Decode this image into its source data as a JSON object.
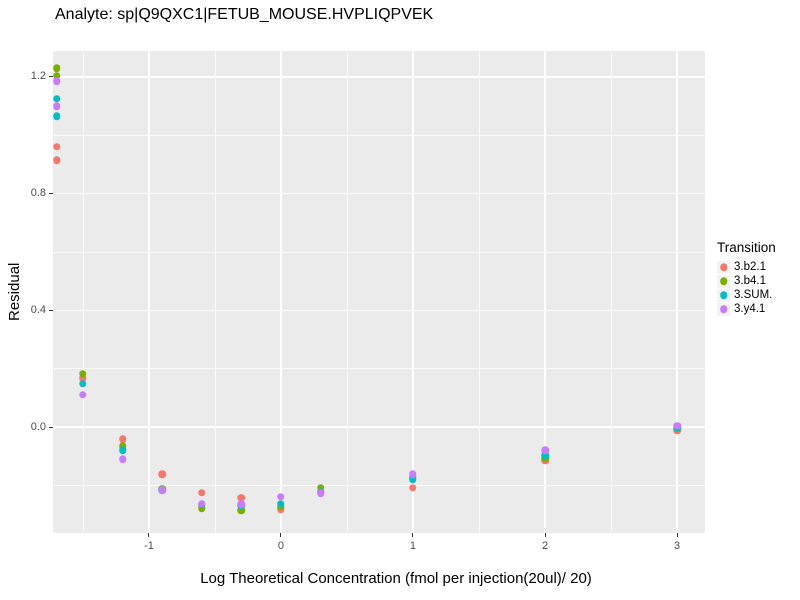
{
  "title": "Analyte: sp|Q9QXC1|FETUB_MOUSE.HVPLIQPVEK",
  "colors": {
    "panel_background": "#EBEBEB",
    "gridline": "#FFFFFF",
    "tick_label": "#4D4D4D",
    "legend_key_background": "#F3F3F3"
  },
  "chart_data": {
    "type": "scatter",
    "title": "Analyte: sp|Q9QXC1|FETUB_MOUSE.HVPLIQPVEK",
    "xlabel": "Log Theoretical Concentration (fmol per injection(20ul)/ 20)",
    "ylabel": "Residual",
    "xlim": [
      -1.727,
      3.212
    ],
    "ylim": [
      -0.363,
      1.289
    ],
    "grid": true,
    "legend_position": "right",
    "legend_title": "Transition",
    "x_ticks": [
      {
        "value": -1,
        "label": "-1"
      },
      {
        "value": 0,
        "label": "0"
      },
      {
        "value": 1,
        "label": "1"
      },
      {
        "value": 2,
        "label": "2"
      },
      {
        "value": 3,
        "label": "3"
      }
    ],
    "y_ticks": [
      {
        "value": 0.0,
        "label": "0.0"
      },
      {
        "value": 0.4,
        "label": "0.4"
      },
      {
        "value": 0.8,
        "label": "0.8"
      },
      {
        "value": 1.2,
        "label": "1.2"
      }
    ],
    "x_minor_ticks": [
      -1.5,
      -0.5,
      0.5,
      1.5,
      2.5
    ],
    "y_minor_ticks": [
      -0.2,
      0.2,
      0.6,
      1.0
    ],
    "series": [
      {
        "name": "3.b2.1",
        "color": "#F8766D",
        "points": [
          [
            -1.7,
            0.96
          ],
          [
            -1.7,
            0.915
          ],
          [
            -1.5,
            0.168
          ],
          [
            -1.2,
            -0.041
          ],
          [
            -0.9,
            -0.161
          ],
          [
            -0.6,
            -0.225
          ],
          [
            -0.3,
            -0.242
          ],
          [
            0.0,
            -0.282
          ],
          [
            0.3,
            -0.222
          ],
          [
            1.0,
            -0.208
          ],
          [
            2.0,
            -0.116
          ],
          [
            3.0,
            -0.01
          ]
        ]
      },
      {
        "name": "3.b4.1",
        "color": "#7CAE00",
        "points": [
          [
            -1.7,
            1.23
          ],
          [
            -1.7,
            1.205
          ],
          [
            -1.5,
            0.182
          ],
          [
            -1.2,
            -0.066
          ],
          [
            -0.9,
            -0.212
          ],
          [
            -0.6,
            -0.279
          ],
          [
            -0.3,
            -0.285
          ],
          [
            0.0,
            -0.272
          ],
          [
            0.3,
            -0.208
          ],
          [
            1.0,
            -0.172
          ],
          [
            2.0,
            -0.107
          ],
          [
            3.0,
            -0.005
          ]
        ]
      },
      {
        "name": "3.SUM.",
        "color": "#00BFC4",
        "points": [
          [
            -1.7,
            1.125
          ],
          [
            -1.7,
            1.065
          ],
          [
            -1.5,
            0.148
          ],
          [
            -1.2,
            -0.08
          ],
          [
            -0.9,
            -0.214
          ],
          [
            -0.6,
            -0.266
          ],
          [
            -0.3,
            -0.27
          ],
          [
            0.0,
            -0.262
          ],
          [
            0.3,
            -0.222
          ],
          [
            1.0,
            -0.178
          ],
          [
            2.0,
            -0.096
          ],
          [
            3.0,
            -0.002
          ]
        ]
      },
      {
        "name": "3.y4.1",
        "color": "#C77CFF",
        "points": [
          [
            -1.7,
            1.185
          ],
          [
            -1.7,
            1.1
          ],
          [
            -1.5,
            0.11
          ],
          [
            -1.2,
            -0.11
          ],
          [
            -0.9,
            -0.216
          ],
          [
            -0.6,
            -0.262
          ],
          [
            -0.3,
            -0.265
          ],
          [
            0.0,
            -0.239
          ],
          [
            0.3,
            -0.227
          ],
          [
            1.0,
            -0.162
          ],
          [
            2.0,
            -0.079
          ],
          [
            3.0,
            0.005
          ]
        ]
      }
    ]
  }
}
